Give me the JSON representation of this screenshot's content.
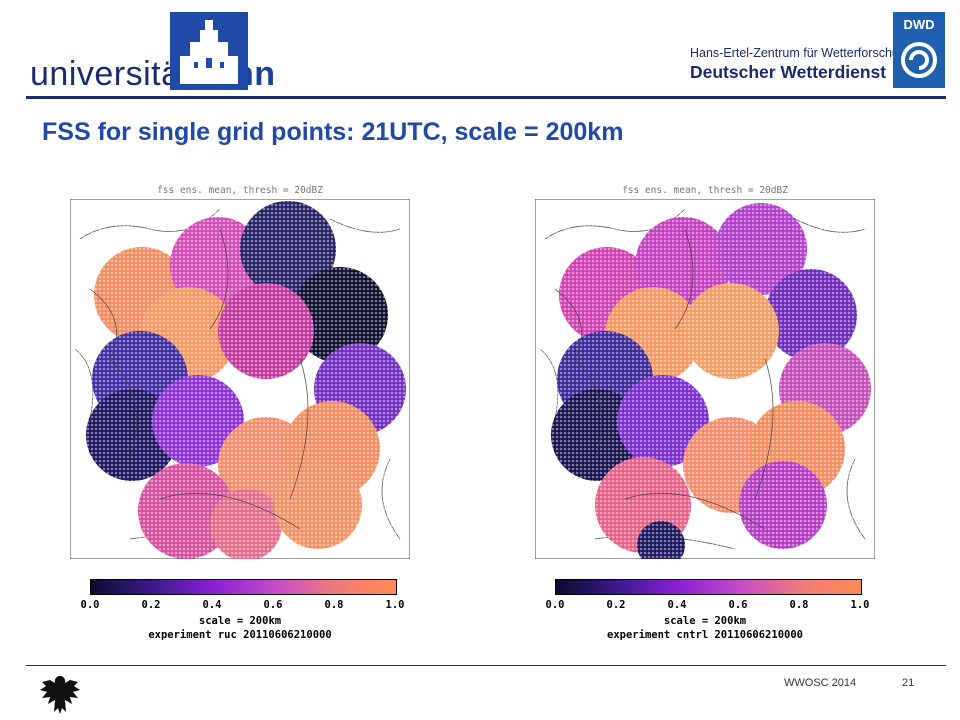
{
  "header": {
    "university_wordmark_light": "universität",
    "university_wordmark_bold": "bonn",
    "dwd_subtitle": "Hans-Ertel-Zentrum für Wetterforschung",
    "dwd_title": "Deutscher Wetterdienst",
    "dwd_logo_text": "DWD"
  },
  "slide": {
    "title": "FSS for single grid points: 21UTC, scale = 200km"
  },
  "panels": [
    {
      "plot_title": "fss ens. mean, thresh = 20dBZ",
      "scale_label": "scale = 200km",
      "experiment_label": "experiment ruc 20110606210000"
    },
    {
      "plot_title": "fss ens. mean, thresh = 20dBZ",
      "scale_label": "scale = 200km",
      "experiment_label": "experiment cntrl 20110606210000"
    }
  ],
  "colorbar": {
    "ticks": [
      "0.0",
      "0.2",
      "0.4",
      "0.6",
      "0.8",
      "1.0"
    ],
    "colors": [
      "#0b0b2e",
      "#3a1a8a",
      "#8a1fd6",
      "#c44ac8",
      "#f07a7a",
      "#ff8a55"
    ]
  },
  "footer": {
    "conference": "WWOSC 2014",
    "page": "21"
  }
}
